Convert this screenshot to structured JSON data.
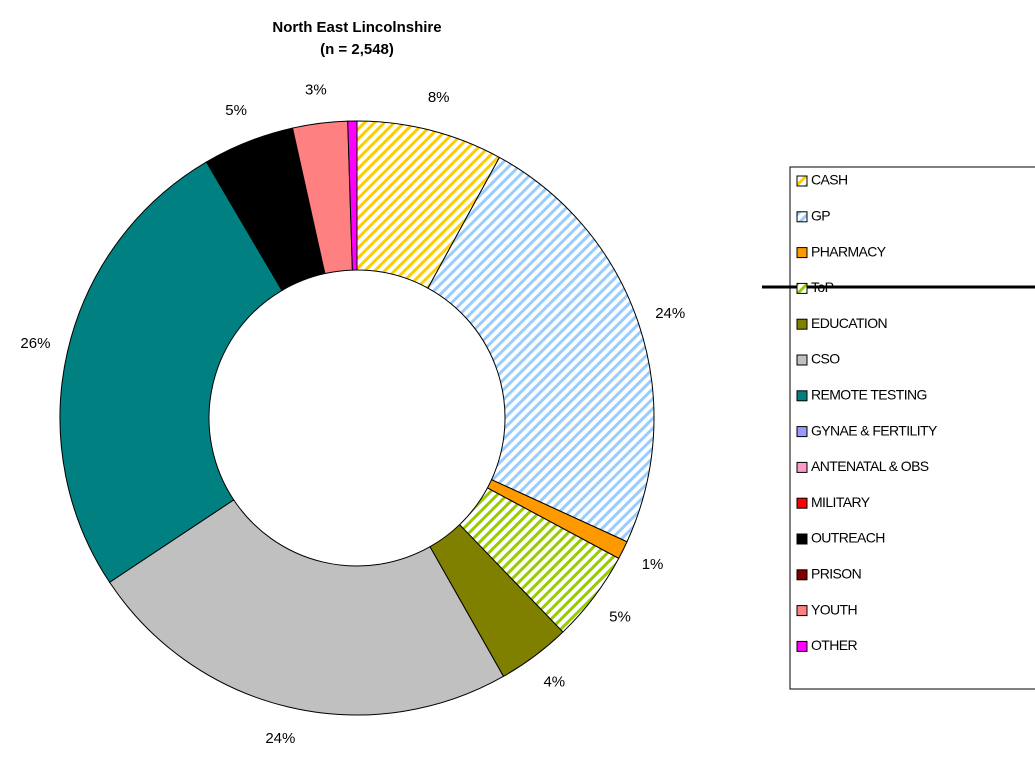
{
  "chart_data": {
    "type": "donut",
    "title": "North East Lincolnshire",
    "subtitle": "(n = 2,548)",
    "categories": [
      "CASH",
      "GP",
      "PHARMACY",
      "ToP",
      "EDUCATION",
      "CSO",
      "REMOTE TESTING",
      "GYNAE & FERTILITY",
      "ANTENATAL & OBS",
      "MILITARY",
      "OUTREACH",
      "PRISON",
      "YOUTH",
      "OTHER"
    ],
    "values": [
      8,
      24,
      1,
      5,
      4,
      24,
      26,
      0,
      0,
      0,
      5,
      0,
      3,
      0.5
    ],
    "value_labels": [
      "8%",
      "24%",
      "1%",
      "5%",
      "4%",
      "24%",
      "26%",
      null,
      null,
      null,
      "5%",
      null,
      "3%",
      null
    ],
    "colors": [
      "#ffcc00",
      "#99ccff",
      "#ff9900",
      "#99cc00",
      "#808000",
      "#c0c0c0",
      "#008080",
      "#9999ff",
      "#ff99cc",
      "#ff0000",
      "#000000",
      "#800000",
      "#ff8080",
      "#ff00ff"
    ],
    "hatched": [
      true,
      true,
      false,
      true,
      false,
      false,
      false,
      false,
      false,
      false,
      false,
      false,
      false,
      false
    ],
    "legend": "right"
  }
}
